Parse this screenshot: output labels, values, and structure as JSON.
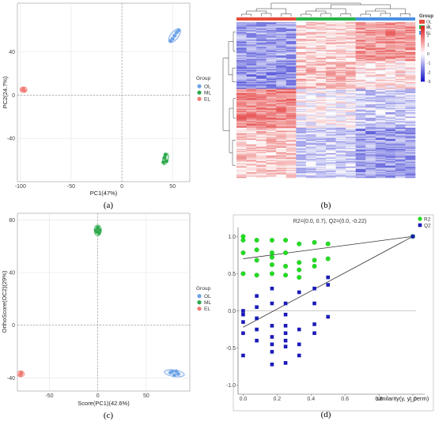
{
  "captions": {
    "a": "(a)",
    "b": "(b)",
    "c": "(c)",
    "d": "(d)"
  },
  "colors": {
    "OL": "#6fa3e6",
    "ML": "#2ca84a",
    "EL": "#f07a72",
    "R2": "#22dd22",
    "Q2": "#1a1ab8"
  },
  "chart_data": [
    {
      "id": "a",
      "type": "scatter",
      "xlabel": "PC1(47%)",
      "ylabel": "PC2(24.7%)",
      "xticks": [
        -100,
        -50,
        0,
        50
      ],
      "yticks": [
        -40,
        0,
        40
      ],
      "xlim": [
        -103,
        67
      ],
      "ylim": [
        -80,
        85
      ],
      "legend": {
        "title": "Group",
        "entries": [
          "OL",
          "ML",
          "EL"
        ],
        "position": "right"
      },
      "series": [
        {
          "name": "OL",
          "points": [
            [
              50,
              52
            ],
            [
              52,
              55
            ],
            [
              54,
              58
            ],
            [
              56,
              60
            ],
            [
              48,
              50
            ]
          ],
          "ellipse": {
            "cx": 52,
            "cy": 55,
            "rx": 14,
            "ry": 4,
            "angle": 52
          }
        },
        {
          "name": "ML",
          "points": [
            [
              42,
              -58
            ],
            [
              44,
              -61
            ],
            [
              41,
              -62
            ],
            [
              43,
              -55
            ]
          ],
          "ellipse": {
            "cx": 43,
            "cy": -59,
            "rx": 10,
            "ry": 2.6,
            "angle": 75
          }
        },
        {
          "name": "EL",
          "points": [
            [
              -98,
              5
            ],
            [
              -97,
              6
            ],
            [
              -96,
              4
            ],
            [
              -97,
              5
            ]
          ],
          "ellipse": {
            "cx": -97,
            "cy": 5,
            "rx": 2.5,
            "ry": 2.5,
            "angle": 0
          }
        }
      ]
    },
    {
      "id": "b",
      "type": "heatmap",
      "legend": {
        "title": "Group",
        "entries": [
          "OL",
          "ML",
          "EL"
        ],
        "position": "right"
      },
      "color_scale": {
        "min": -3,
        "max": 3,
        "ticks": [
          3,
          2,
          1,
          0,
          -1,
          -2,
          -3
        ],
        "low": "#1c1ccc",
        "mid": "#ffffff",
        "high": "#e02020"
      },
      "column_groups": [
        {
          "name": "OL",
          "color": "#e74c3c",
          "count": 6
        },
        {
          "name": "ML",
          "color": "#2bb34a",
          "count": 6
        },
        {
          "name": "EL",
          "color": "#4a90e2",
          "count": 6
        }
      ],
      "row_blocks": [
        {
          "rows": 35,
          "values": [
            -1.2,
            -1.2,
            -1.2,
            -1.2,
            -1.2,
            -1.2,
            0.6,
            0.6,
            0.6,
            0.6,
            0.6,
            0.6,
            1.4,
            1.4,
            1.4,
            1.4,
            1.4,
            1.4
          ]
        },
        {
          "rows": 25,
          "values": [
            -1.4,
            -1.4,
            -1.4,
            -1.4,
            -1.4,
            -1.4,
            0.8,
            0.8,
            0.8,
            0.8,
            0.8,
            0.8,
            0.4,
            0.4,
            0.4,
            0.4,
            0.4,
            0.4
          ]
        },
        {
          "rows": 35,
          "values": [
            1.6,
            1.6,
            1.6,
            1.6,
            1.6,
            1.6,
            0.0,
            0.0,
            0.0,
            0.0,
            0.0,
            0.0,
            -0.6,
            -0.6,
            -0.6,
            -0.6,
            -0.6,
            -0.6
          ]
        },
        {
          "rows": 45,
          "values": [
            0.7,
            0.7,
            0.7,
            0.7,
            0.7,
            0.7,
            -0.6,
            -0.6,
            -0.6,
            -0.6,
            -0.6,
            -0.6,
            -1.3,
            -1.3,
            -1.3,
            -1.3,
            -1.3,
            -1.3
          ]
        }
      ]
    },
    {
      "id": "c",
      "type": "scatter",
      "xlabel": "Score(PC1)(42.6%)",
      "ylabel": "OrthoScore(OC2)(29%)",
      "xticks": [
        -50,
        0,
        50
      ],
      "yticks": [
        -40,
        0,
        40,
        80
      ],
      "xlim": [
        -83,
        95
      ],
      "ylim": [
        -50,
        85
      ],
      "legend": {
        "title": "Group",
        "entries": [
          "OL",
          "ML",
          "EL"
        ],
        "position": "right"
      },
      "series": [
        {
          "name": "OL",
          "points": [
            [
              75,
              -36
            ],
            [
              79,
              -38
            ],
            [
              83,
              -37
            ],
            [
              81,
              -35
            ],
            [
              77,
              -35
            ]
          ],
          "ellipse": {
            "cx": 79,
            "cy": -36.5,
            "rx": 14,
            "ry": 2.8,
            "angle": -8
          }
        },
        {
          "name": "ML",
          "points": [
            [
              -2,
              72
            ],
            [
              0,
              74
            ],
            [
              2,
              72
            ],
            [
              1,
              70
            ],
            [
              -1,
              71
            ]
          ],
          "ellipse": {
            "cx": 0,
            "cy": 72,
            "rx": 4.5,
            "ry": 4.5,
            "angle": 0
          }
        },
        {
          "name": "EL",
          "points": [
            [
              -80,
              -37
            ],
            [
              -79,
              -36
            ],
            [
              -80,
              -38
            ],
            [
              -79,
              -37
            ]
          ],
          "ellipse": {
            "cx": -79.5,
            "cy": -37,
            "rx": 2.2,
            "ry": 2.5,
            "angle": 0
          }
        }
      ]
    },
    {
      "id": "d",
      "type": "scatter",
      "title": "R2=(0.0, 0.7), Q2=(0.0, -0.22)",
      "xlabel": "similarity(y, y_perm)",
      "ylabel": "",
      "xticks": [
        0.0,
        0.2,
        0.4,
        0.6,
        0.8,
        1.0
      ],
      "xtick_labels": [
        "0.0",
        "0.2",
        "0.4",
        "0.6",
        "0.8",
        "1.0"
      ],
      "yticks": [
        1.0,
        0.5,
        0.0,
        -0.5,
        -1.0
      ],
      "ytick_labels": [
        "1.0",
        "0.5",
        "0.0",
        "-0.5",
        "-1.0"
      ],
      "xlim": [
        -0.03,
        1.07
      ],
      "ylim": [
        -1.12,
        1.12
      ],
      "legend": {
        "entries": [
          "R2",
          "Q2"
        ],
        "position": "top-right"
      },
      "lines": [
        {
          "name": "R2",
          "from": [
            0.0,
            0.7
          ],
          "to": [
            1.0,
            1.0
          ]
        },
        {
          "name": "Q2",
          "from": [
            0.0,
            -0.22
          ],
          "to": [
            1.0,
            1.0
          ]
        }
      ],
      "series": [
        {
          "name": "R2",
          "marker": "circle",
          "points": [
            [
              1.0,
              1.0
            ],
            [
              0.0,
              1.0
            ],
            [
              0.0,
              0.95
            ],
            [
              0.0,
              0.78
            ],
            [
              0.0,
              0.5
            ],
            [
              0.08,
              0.95
            ],
            [
              0.08,
              0.82
            ],
            [
              0.08,
              0.48
            ],
            [
              0.08,
              0.68
            ],
            [
              0.17,
              0.95
            ],
            [
              0.17,
              0.78
            ],
            [
              0.17,
              0.72
            ],
            [
              0.17,
              0.62
            ],
            [
              0.17,
              0.5
            ],
            [
              0.25,
              0.95
            ],
            [
              0.25,
              0.78
            ],
            [
              0.25,
              0.6
            ],
            [
              0.25,
              0.48
            ],
            [
              0.33,
              0.9
            ],
            [
              0.33,
              0.65
            ],
            [
              0.33,
              0.55
            ],
            [
              0.33,
              0.45
            ],
            [
              0.42,
              0.92
            ],
            [
              0.42,
              0.68
            ],
            [
              0.42,
              0.6
            ],
            [
              0.5,
              0.9
            ],
            [
              0.5,
              0.7
            ]
          ]
        },
        {
          "name": "Q2",
          "marker": "square",
          "points": [
            [
              1.0,
              1.0
            ],
            [
              0.0,
              0.0
            ],
            [
              0.0,
              -0.05
            ],
            [
              0.0,
              -0.15
            ],
            [
              0.0,
              -0.3
            ],
            [
              0.0,
              -0.6
            ],
            [
              0.08,
              0.2
            ],
            [
              0.08,
              0.05
            ],
            [
              0.08,
              -0.1
            ],
            [
              0.08,
              -0.25
            ],
            [
              0.08,
              -0.4
            ],
            [
              0.17,
              0.3
            ],
            [
              0.17,
              0.1
            ],
            [
              0.17,
              -0.2
            ],
            [
              0.17,
              -0.35
            ],
            [
              0.17,
              -0.45
            ],
            [
              0.17,
              -0.55
            ],
            [
              0.17,
              -0.72
            ],
            [
              0.25,
              0.1
            ],
            [
              0.25,
              -0.05
            ],
            [
              0.25,
              -0.2
            ],
            [
              0.25,
              -0.3
            ],
            [
              0.25,
              -0.4
            ],
            [
              0.25,
              -0.48
            ],
            [
              0.25,
              -0.7
            ],
            [
              0.33,
              0.25
            ],
            [
              0.33,
              -0.25
            ],
            [
              0.33,
              -0.45
            ],
            [
              0.33,
              -0.6
            ],
            [
              0.42,
              0.3
            ],
            [
              0.42,
              0.1
            ],
            [
              0.42,
              -0.18
            ],
            [
              0.42,
              -0.3
            ],
            [
              0.5,
              0.45
            ],
            [
              0.5,
              0.35
            ],
            [
              0.5,
              -0.08
            ]
          ]
        }
      ]
    }
  ]
}
